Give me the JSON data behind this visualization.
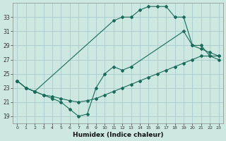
{
  "xlabel": "Humidex (Indice chaleur)",
  "bg_color": "#cce8e0",
  "grid_color": "#aacccc",
  "line_color": "#1a6b5a",
  "xlim": [
    -0.5,
    23.5
  ],
  "ylim": [
    18,
    35
  ],
  "xticks": [
    0,
    1,
    2,
    3,
    4,
    5,
    6,
    7,
    8,
    9,
    10,
    11,
    12,
    13,
    14,
    15,
    16,
    17,
    18,
    19,
    20,
    21,
    22,
    23
  ],
  "yticks": [
    19,
    21,
    23,
    25,
    27,
    29,
    31,
    33
  ],
  "line1_x": [
    0,
    1,
    2,
    11,
    12,
    13,
    14,
    15,
    16,
    17,
    18,
    19,
    20,
    21,
    22,
    23
  ],
  "line1_y": [
    24,
    23,
    22.5,
    32.5,
    33,
    33,
    34,
    34.5,
    34.5,
    34.5,
    33,
    33,
    29,
    29,
    27.5,
    27
  ],
  "line2_x": [
    0,
    1,
    2,
    3,
    4,
    5,
    6,
    7,
    8,
    9,
    10,
    11,
    12,
    13,
    19,
    20,
    21,
    22,
    23
  ],
  "line2_y": [
    24,
    23,
    22.5,
    22,
    21.5,
    21,
    20,
    19,
    19.3,
    23,
    25,
    26,
    25.5,
    26,
    31,
    29,
    28.5,
    28,
    27.5
  ],
  "line3_x": [
    0,
    1,
    2,
    3,
    4,
    5,
    6,
    7,
    8,
    9,
    10,
    11,
    12,
    13,
    14,
    15,
    16,
    17,
    18,
    19,
    20,
    21,
    22,
    23
  ],
  "line3_y": [
    24,
    23,
    22.5,
    22,
    21.8,
    21.5,
    21.2,
    21,
    21.2,
    21.5,
    22,
    22.5,
    23,
    23.5,
    24,
    24.5,
    25,
    25.5,
    26,
    26.5,
    27,
    27.5,
    27.5,
    27.5
  ]
}
